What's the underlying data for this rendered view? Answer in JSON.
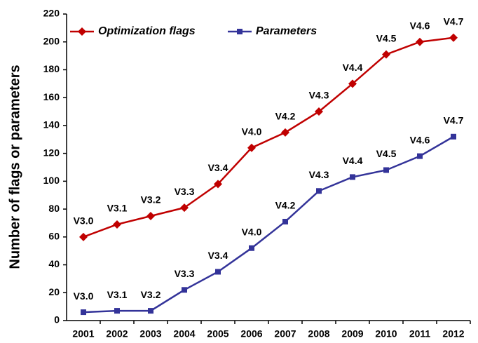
{
  "chart_data": {
    "type": "line",
    "y_label": "Number of flags or parameters",
    "categories": [
      "2001",
      "2002",
      "2003",
      "2004",
      "2005",
      "2006",
      "2007",
      "2008",
      "2009",
      "2010",
      "2011",
      "2012"
    ],
    "series": [
      {
        "name": "Optimization flags",
        "color": "#c00000",
        "marker": "diamond",
        "values": [
          60,
          69,
          75,
          81,
          98,
          124,
          135,
          150,
          170,
          191,
          200,
          203
        ],
        "point_labels": [
          "V3.0",
          "V3.1",
          "V3.2",
          "V3.3",
          "V3.4",
          "V4.0",
          "V4.2",
          "V4.3",
          "V4.4",
          "V4.5",
          "V4.6",
          "V4.7"
        ]
      },
      {
        "name": "Parameters",
        "color": "#333399",
        "marker": "square",
        "values": [
          6,
          7,
          7,
          22,
          35,
          52,
          71,
          93,
          103,
          108,
          118,
          132
        ],
        "point_labels": [
          "V3.0",
          "V3.1",
          "V3.2",
          "V3.3",
          "V3.4",
          "V4.0",
          "V4.2",
          "V4.3",
          "V4.4",
          "V4.5",
          "V4.6",
          "V4.7"
        ]
      }
    ],
    "ylim": [
      0,
      220
    ],
    "yticks": [
      0,
      20,
      40,
      60,
      80,
      100,
      120,
      140,
      160,
      180,
      200,
      220
    ],
    "grid": false,
    "legend": "top-left"
  }
}
